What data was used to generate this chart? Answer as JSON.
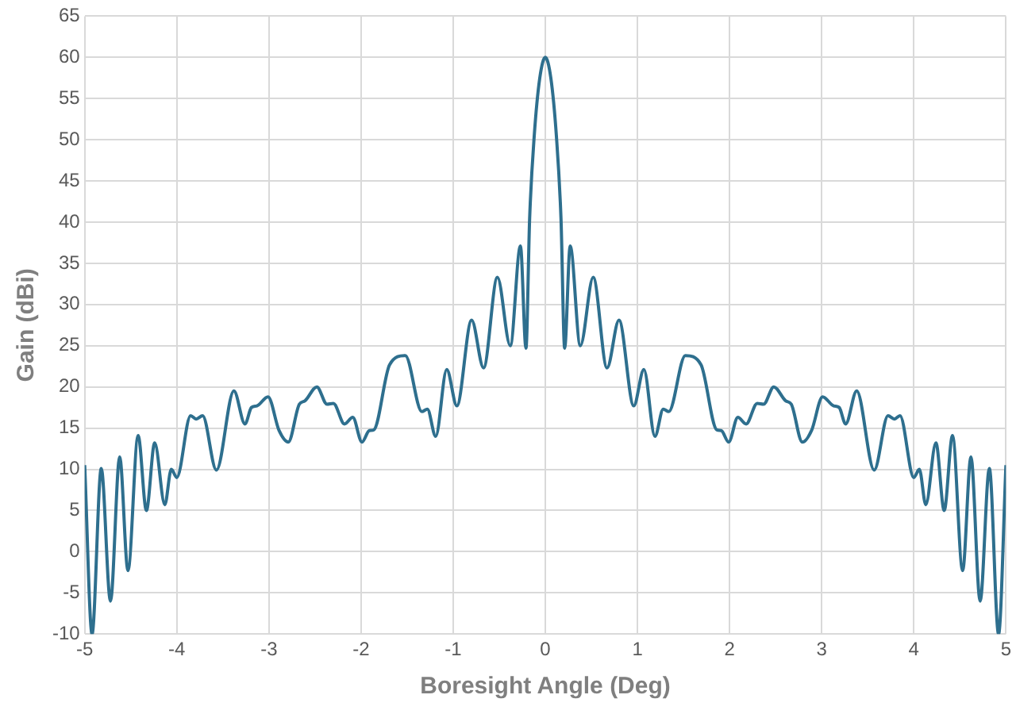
{
  "chart_data": {
    "type": "line",
    "xlabel": "Boresight Angle (Deg)",
    "ylabel": "Gain (dBi)",
    "x": [
      -5,
      -4.92,
      -4.82,
      -4.72,
      -4.62,
      -4.53,
      -4.42,
      -4.33,
      -4.24,
      -4.13,
      -4.06,
      -4,
      -3.85,
      -3.79,
      -3.72,
      -3.57,
      -3.38,
      -3.26,
      -3.19,
      -3.13,
      -3.01,
      -2.89,
      -2.79,
      -2.67,
      -2.61,
      -2.48,
      -2.37,
      -2.3,
      -2.18,
      -2.09,
      -1.99,
      -1.91,
      -1.86,
      -1.69,
      -1.52,
      -1.34,
      -1.28,
      -1.19,
      -1.07,
      -0.96,
      -0.8,
      -0.67,
      -0.52,
      -0.38,
      -0.27,
      -0.21,
      -0.17,
      -0.12,
      -0.06,
      0,
      0.06,
      0.12,
      0.17,
      0.21,
      0.27,
      0.38,
      0.52,
      0.67,
      0.8,
      0.96,
      1.07,
      1.19,
      1.28,
      1.34,
      1.52,
      1.69,
      1.86,
      1.91,
      1.99,
      2.09,
      2.18,
      2.3,
      2.37,
      2.48,
      2.61,
      2.67,
      2.79,
      2.89,
      3.01,
      3.13,
      3.19,
      3.26,
      3.38,
      3.57,
      3.72,
      3.79,
      3.85,
      4,
      4.06,
      4.13,
      4.24,
      4.33,
      4.42,
      4.53,
      4.62,
      4.72,
      4.82,
      4.92,
      5
    ],
    "series": [
      {
        "color": "#2e6f8e",
        "values": [
          10.5,
          -10,
          10.1,
          -6,
          11.5,
          -2.3,
          14.1,
          5,
          13.2,
          5.7,
          10,
          9,
          16.5,
          16.1,
          16.5,
          9.9,
          19.5,
          15.5,
          17.5,
          17.7,
          18.8,
          14.7,
          13.3,
          17.9,
          18.3,
          20,
          17.9,
          18,
          15.5,
          16.3,
          13.3,
          14.7,
          14.8,
          22.7,
          23.8,
          17,
          17.3,
          14,
          22.1,
          17.7,
          28.1,
          22.3,
          33.3,
          25,
          37.1,
          24.7,
          40.5,
          50.5,
          57.5,
          60,
          57.5,
          50.5,
          40.5,
          24.7,
          37.1,
          25,
          33.3,
          22.3,
          28.1,
          17.7,
          22.1,
          14,
          17.3,
          17,
          23.8,
          22.7,
          14.8,
          14.7,
          13.3,
          16.3,
          15.5,
          18,
          17.9,
          20,
          18.3,
          17.9,
          13.3,
          14.7,
          18.8,
          17.7,
          17.5,
          15.5,
          19.5,
          9.9,
          16.5,
          16.1,
          16.5,
          9,
          10,
          5.7,
          13.2,
          5,
          14.1,
          -2.3,
          11.5,
          -6,
          10.1,
          -10,
          10.5
        ]
      }
    ],
    "xlim": [
      -5,
      5
    ],
    "xticks": [
      -5,
      -4,
      -3,
      -2,
      -1,
      0,
      1,
      2,
      3,
      4,
      5
    ],
    "ylim": [
      -10,
      65
    ],
    "yticks": [
      -10,
      -5,
      0,
      5,
      10,
      15,
      20,
      25,
      30,
      35,
      40,
      45,
      50,
      55,
      60,
      65
    ],
    "grid": true,
    "legend": false,
    "marker": "none",
    "line_style": "solid"
  }
}
